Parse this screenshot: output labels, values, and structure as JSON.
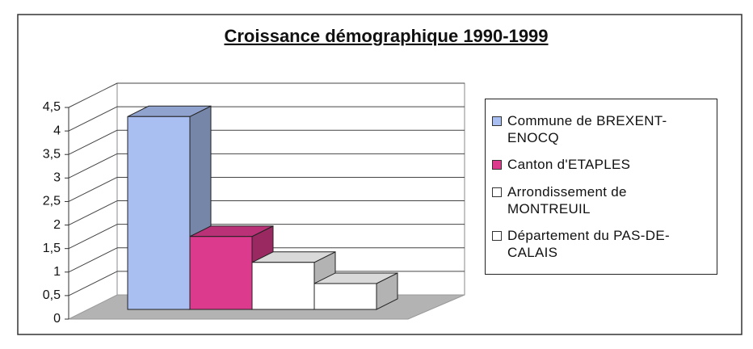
{
  "chart_data": {
    "type": "bar3d",
    "title": "Croissance démographique 1990-1999",
    "series": [
      {
        "name": "Commune de BREXENT-ENOCQ",
        "color": "#a9bff2",
        "values": [
          4.1
        ]
      },
      {
        "name": "Canton d'ETAPLES",
        "color": "#dc3a8c",
        "values": [
          1.55
        ]
      },
      {
        "name": "Arrondissement de MONTREUIL",
        "color": "#ffffff",
        "values": [
          1.0
        ]
      },
      {
        "name": "Département du PAS-DE-CALAIS",
        "color": "#ffffff",
        "values": [
          0.55
        ]
      }
    ],
    "ylim": [
      0,
      4.5
    ],
    "yticks": [
      0,
      {
        "value": 0.5,
        "label": "0,5"
      },
      1,
      {
        "value": 1.5,
        "label": "1,5"
      },
      2,
      {
        "value": 2.5,
        "label": "2,5"
      },
      3,
      {
        "value": 3.5,
        "label": "3,5"
      },
      4,
      {
        "value": 4.5,
        "label": "4,5"
      }
    ],
    "grid": true,
    "legend": "right"
  }
}
